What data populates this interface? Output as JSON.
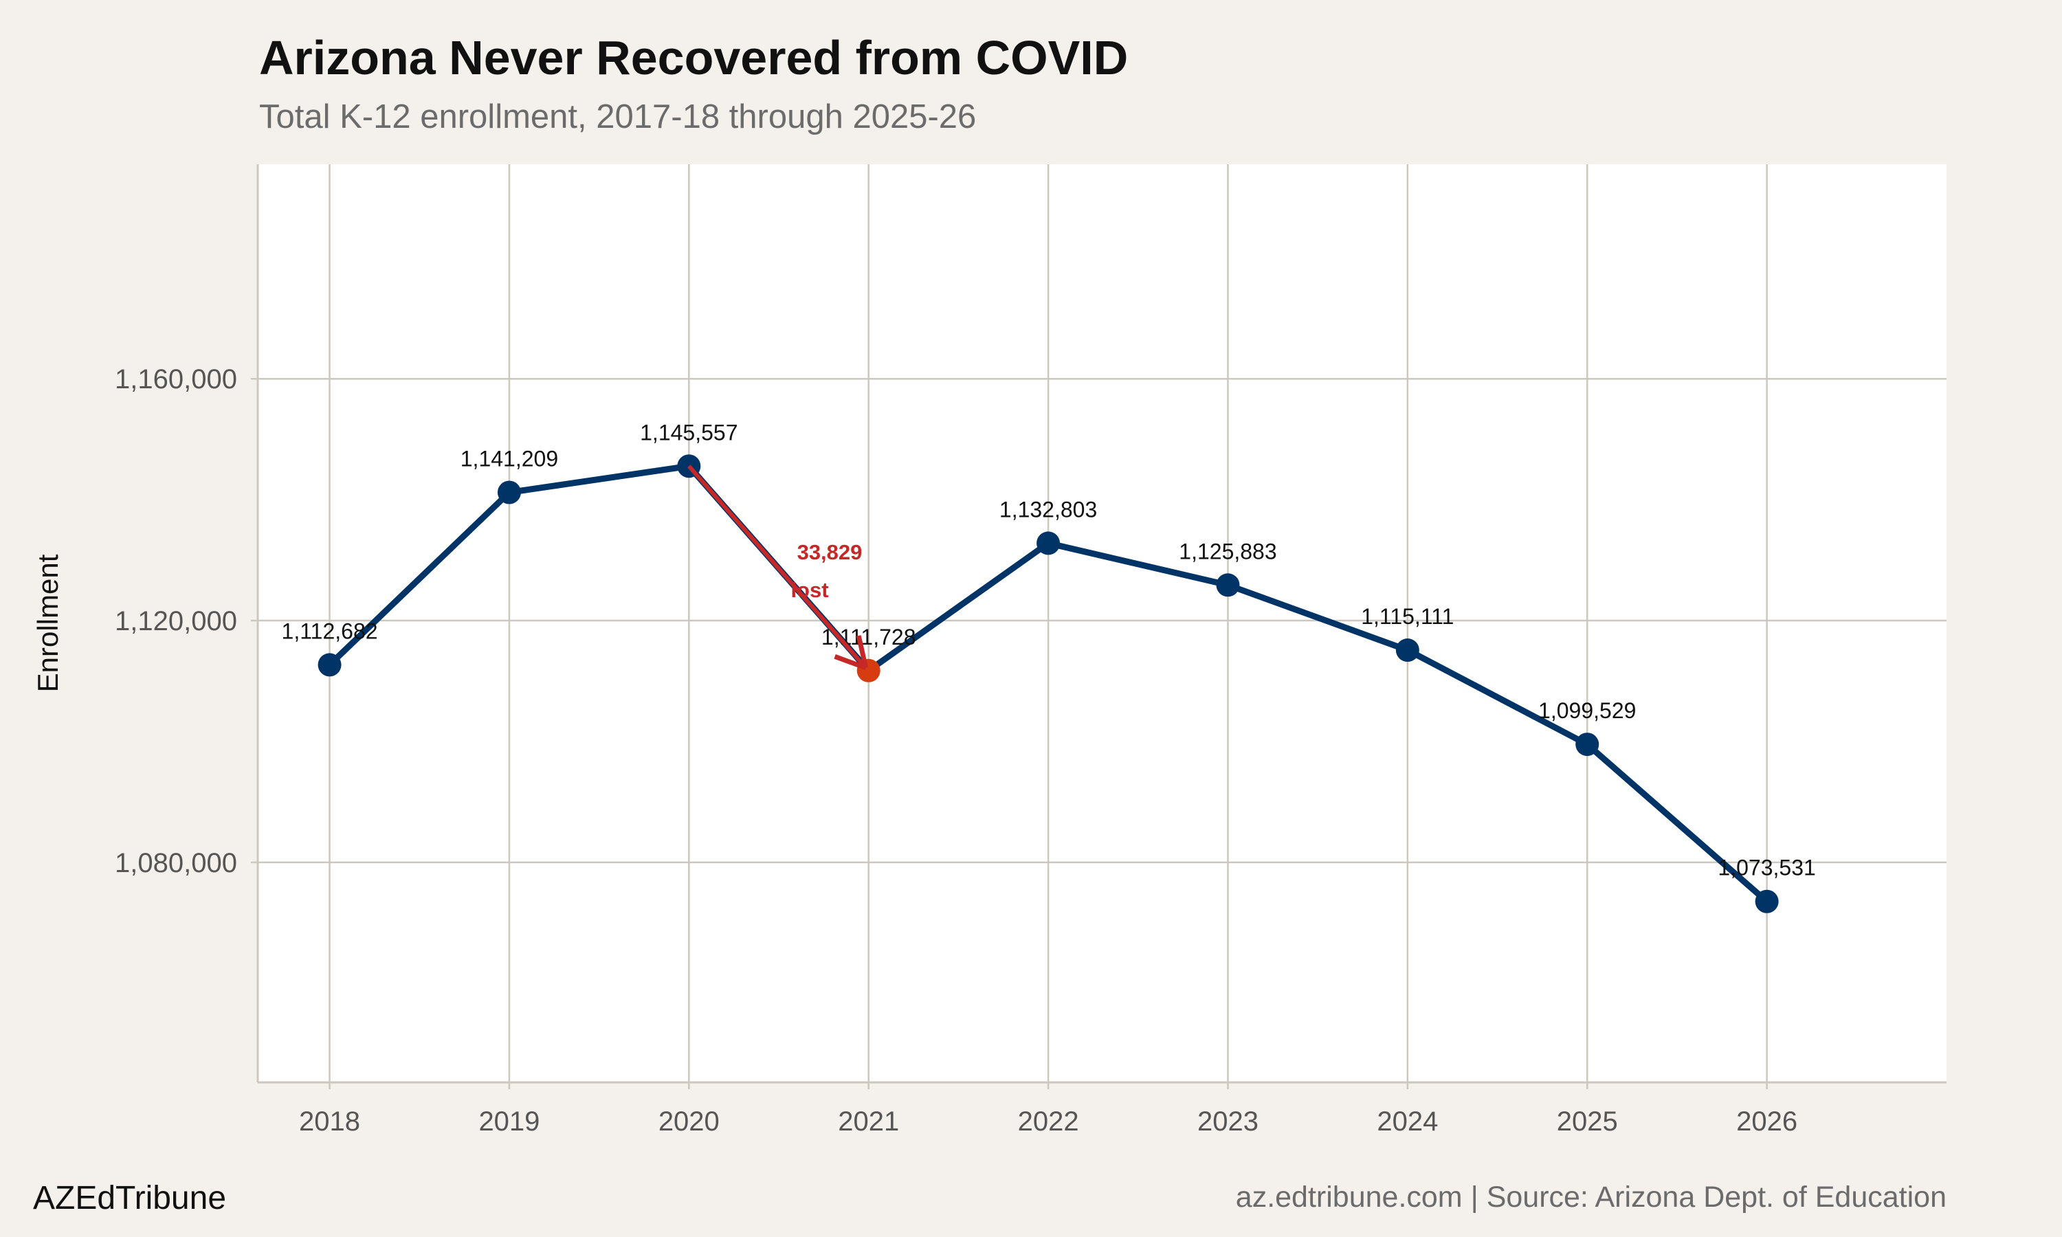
{
  "chart_data": {
    "type": "line",
    "title": "Arizona Never Recovered from COVID",
    "subtitle": "Total K-12 enrollment, 2017-18 through 2025-26",
    "xlabel": "",
    "ylabel": "Enrollment",
    "x": [
      2018,
      2019,
      2020,
      2021,
      2022,
      2023,
      2024,
      2025,
      2026
    ],
    "values": [
      1112682,
      1141209,
      1145557,
      1111728,
      1132803,
      1125883,
      1115111,
      1099529,
      1073531
    ],
    "data_labels": [
      "1,112,682",
      "1,141,209",
      "1,145,557",
      "1,111,728",
      "1,132,803",
      "1,125,883",
      "1,115,111",
      "1,099,529",
      "1,073,531"
    ],
    "x_ticks": [
      "2018",
      "2019",
      "2020",
      "2021",
      "2022",
      "2023",
      "2024",
      "2025",
      "2026"
    ],
    "y_ticks": [
      1080000,
      1120000,
      1160000
    ],
    "y_tick_labels": [
      "1,080,000",
      "1,120,000",
      "1,160,000"
    ],
    "xlim": [
      2017.6,
      2027.0
    ],
    "ylim": [
      1043600,
      1195500
    ],
    "grid": true,
    "highlight_point": 2021,
    "annotation": {
      "line1": "33,829",
      "line2": "lost",
      "from": 2020,
      "to": 2021
    },
    "colors": {
      "line": "#003366",
      "highlight": "#d63c0f",
      "annotation": "#c62828",
      "grid": "#cdc7bd",
      "background": "#f4f1ec",
      "panel": "#ffffff"
    }
  },
  "footer": {
    "brand": "AZEdTribune",
    "source": "az.edtribune.com | Source: Arizona Dept. of Education"
  }
}
